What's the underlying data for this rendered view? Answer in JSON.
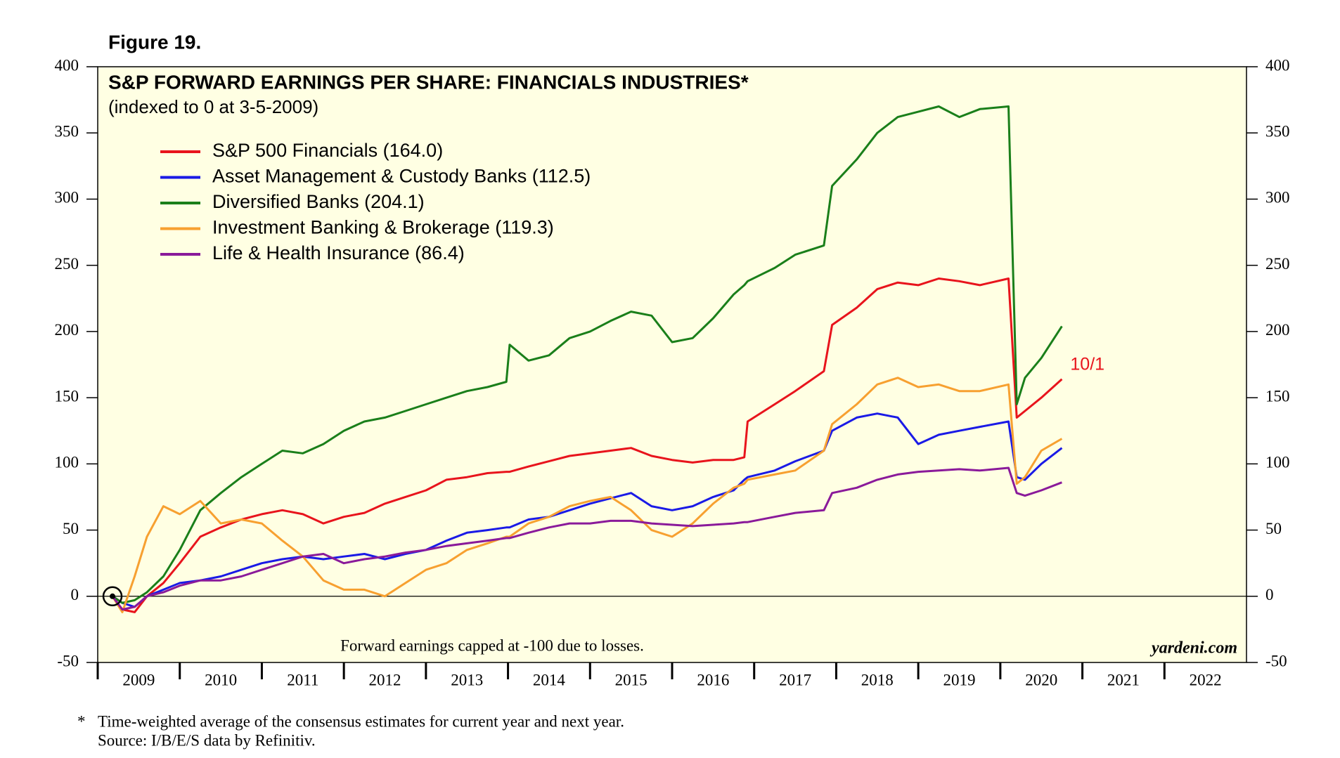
{
  "chart_data": {
    "type": "line",
    "figure_label": "Figure 19.",
    "title": "S&P FORWARD EARNINGS PER SHARE: FINANCIALS INDUSTRIES*",
    "subtitle": "(indexed to 0 at 3-5-2009)",
    "annotation": "10/1",
    "note": "Forward earnings capped at -100 due to losses.",
    "brand": "yardeni.com",
    "footnote_marker": "*",
    "footnote": "Time-weighted average of the consensus estimates for current year and next year.",
    "source": "Source: I/B/E/S data by Refinitiv.",
    "xlim": [
      2009,
      2023
    ],
    "xticks": [
      2009,
      2010,
      2011,
      2012,
      2013,
      2014,
      2015,
      2016,
      2017,
      2018,
      2019,
      2020,
      2021,
      2022
    ],
    "ylim": [
      -50,
      400
    ],
    "yticks": [
      -50,
      0,
      50,
      100,
      150,
      200,
      250,
      300,
      350,
      400
    ],
    "y2lim": [
      -50,
      400
    ],
    "y2ticks": [
      -50,
      0,
      50,
      100,
      150,
      200,
      250,
      300,
      350,
      400
    ],
    "x": [
      2009.18,
      2009.3,
      2009.45,
      2009.6,
      2009.8,
      2010,
      2010.25,
      2010.5,
      2010.75,
      2011,
      2011.25,
      2011.5,
      2011.75,
      2012,
      2012.25,
      2012.5,
      2012.75,
      2013,
      2013.25,
      2013.5,
      2013.75,
      2013.98,
      2014.02,
      2014.25,
      2014.5,
      2014.75,
      2015,
      2015.25,
      2015.5,
      2015.75,
      2016,
      2016.25,
      2016.5,
      2016.75,
      2016.88,
      2016.92,
      2017.25,
      2017.5,
      2017.85,
      2017.95,
      2018.25,
      2018.5,
      2018.75,
      2019,
      2019.25,
      2019.5,
      2019.75,
      2020.1,
      2020.2,
      2020.3,
      2020.5,
      2020.75
    ],
    "series": [
      {
        "name": "S&P 500 Financials (164.0)",
        "color": "#e8141c",
        "values": [
          0,
          -10,
          -12,
          0,
          10,
          25,
          45,
          52,
          58,
          62,
          65,
          62,
          55,
          60,
          63,
          70,
          75,
          80,
          88,
          90,
          93,
          94,
          94,
          98,
          102,
          106,
          108,
          110,
          112,
          106,
          103,
          101,
          103,
          103,
          105,
          132,
          145,
          155,
          170,
          205,
          218,
          232,
          237,
          235,
          240,
          238,
          235,
          240,
          135,
          140,
          150,
          164
        ]
      },
      {
        "name": "Asset Management & Custody Banks (112.5)",
        "color": "#1a1ae6",
        "values": [
          0,
          -5,
          -8,
          0,
          5,
          10,
          12,
          15,
          20,
          25,
          28,
          30,
          28,
          30,
          32,
          28,
          32,
          35,
          42,
          48,
          50,
          52,
          52,
          58,
          60,
          65,
          70,
          74,
          78,
          68,
          65,
          68,
          75,
          80,
          88,
          90,
          95,
          102,
          110,
          125,
          135,
          138,
          135,
          115,
          122,
          125,
          128,
          132,
          90,
          88,
          100,
          112
        ]
      },
      {
        "name": "Diversified Banks (204.1)",
        "color": "#1a7f1a",
        "values": [
          0,
          -5,
          -3,
          3,
          15,
          35,
          65,
          78,
          90,
          100,
          110,
          108,
          115,
          125,
          132,
          135,
          140,
          145,
          150,
          155,
          158,
          162,
          190,
          178,
          182,
          195,
          200,
          208,
          215,
          212,
          192,
          195,
          210,
          228,
          235,
          238,
          248,
          258,
          265,
          310,
          330,
          350,
          362,
          366,
          370,
          362,
          368,
          370,
          145,
          165,
          180,
          204
        ]
      },
      {
        "name": "Investment Banking & Brokerage (119.3)",
        "color": "#f7a030",
        "values": [
          0,
          -12,
          15,
          45,
          68,
          62,
          72,
          55,
          58,
          55,
          42,
          30,
          12,
          5,
          5,
          0,
          10,
          20,
          25,
          35,
          40,
          45,
          45,
          55,
          60,
          68,
          72,
          75,
          65,
          50,
          45,
          55,
          70,
          82,
          85,
          88,
          92,
          95,
          110,
          130,
          145,
          160,
          165,
          158,
          160,
          155,
          155,
          160,
          85,
          90,
          110,
          119
        ]
      },
      {
        "name": "Life & Health Insurance (86.4)",
        "color": "#8a1a9a",
        "values": [
          0,
          -10,
          -8,
          0,
          3,
          8,
          12,
          12,
          15,
          20,
          25,
          30,
          32,
          25,
          28,
          30,
          33,
          35,
          38,
          40,
          42,
          44,
          44,
          48,
          52,
          55,
          55,
          57,
          57,
          55,
          54,
          53,
          54,
          55,
          56,
          56,
          60,
          63,
          65,
          78,
          82,
          88,
          92,
          94,
          95,
          96,
          95,
          97,
          78,
          76,
          80,
          86
        ]
      }
    ]
  }
}
